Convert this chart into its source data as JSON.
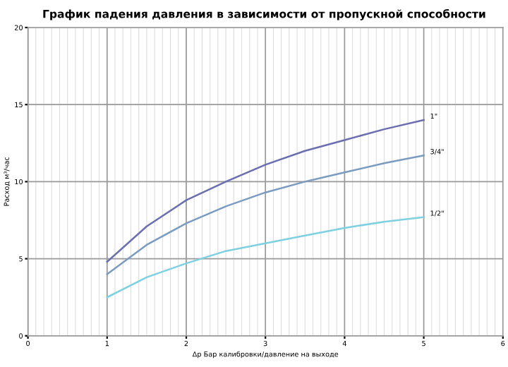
{
  "chart_data": {
    "type": "line",
    "title": "График падения давления в зависимости от пропускной способности",
    "xlabel": "Δр Бар калибровки/давление на выходе",
    "ylabel": "Расход м³/час",
    "x": [
      1,
      1.5,
      2,
      2.5,
      3,
      3.5,
      4,
      4.5,
      5
    ],
    "series": [
      {
        "name": "1\"",
        "color": "#6b6fb0",
        "values": [
          4.8,
          7.1,
          8.8,
          10.0,
          11.1,
          12.0,
          12.7,
          13.4,
          14.0
        ]
      },
      {
        "name": "3/4\"",
        "color": "#7a9cc0",
        "values": [
          4.0,
          5.9,
          7.3,
          8.4,
          9.3,
          10.0,
          10.6,
          11.2,
          11.7
        ]
      },
      {
        "name": "1/2\"",
        "color": "#7fd0e0",
        "values": [
          2.5,
          3.8,
          4.7,
          5.5,
          6.0,
          6.5,
          7.0,
          7.4,
          7.7
        ]
      }
    ],
    "xlim": [
      0,
      6
    ],
    "xticks": [
      0,
      1,
      2,
      3,
      4,
      5,
      6
    ],
    "ylim": [
      0,
      20
    ],
    "yticks": [
      0,
      5,
      10,
      15,
      20
    ],
    "grid": true,
    "legend": false,
    "marker": "none",
    "line_style": "solid"
  }
}
